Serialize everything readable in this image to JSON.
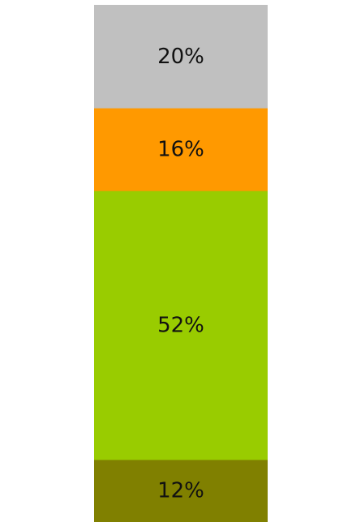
{
  "chart_data": {
    "type": "bar",
    "stacked": true,
    "orientation": "vertical",
    "segments": [
      {
        "label": "20%",
        "value": 20,
        "color": "#c0c0c0"
      },
      {
        "label": "16%",
        "value": 16,
        "color": "#ff9900"
      },
      {
        "label": "52%",
        "value": 52,
        "color": "#99cc00"
      },
      {
        "label": "12%",
        "value": 12,
        "color": "#808000"
      }
    ]
  }
}
